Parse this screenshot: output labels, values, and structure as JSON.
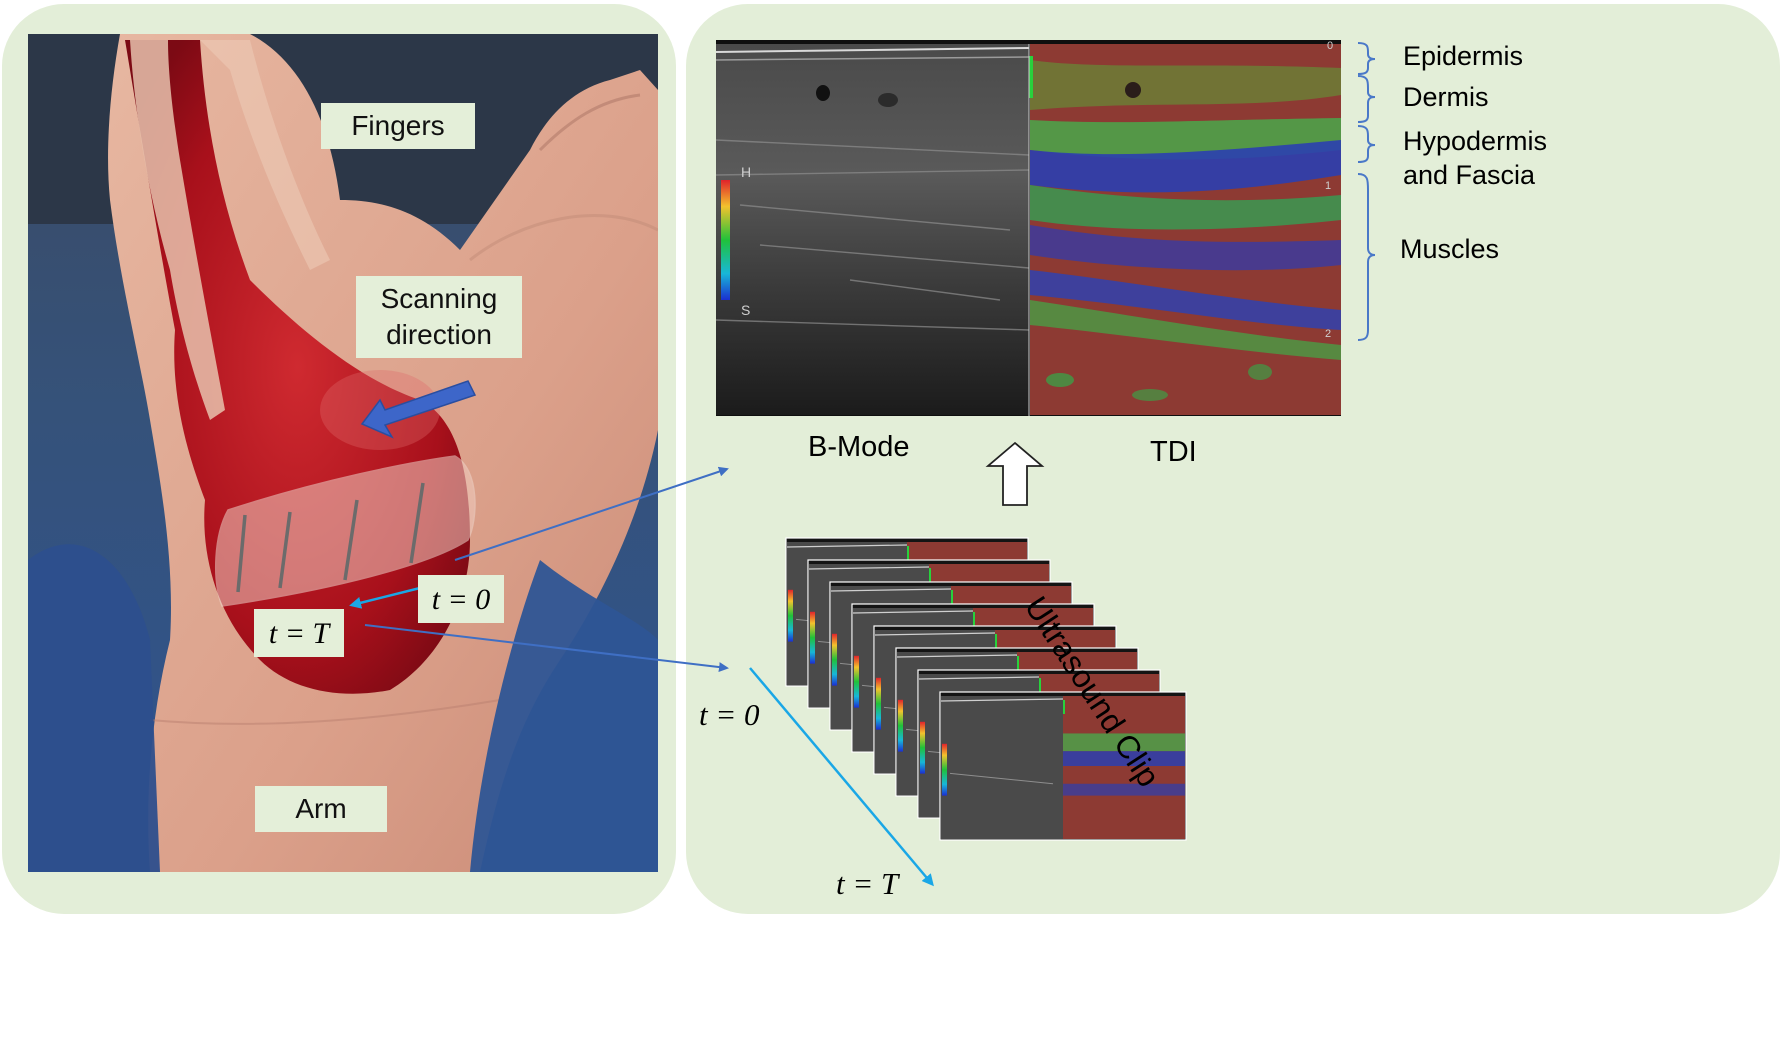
{
  "photo_labels": {
    "fingers": "Fingers",
    "scanning_direction": "Scanning\ndirection",
    "arm": "Arm",
    "t0": "t = 0",
    "tT": "t = T"
  },
  "frame_labels": {
    "bmode": "B-Mode",
    "tdi": "TDI",
    "clip": "Ultrasound Clip",
    "t0": "t = 0",
    "tT": "t = T"
  },
  "colorbar": {
    "top": "H",
    "bottom": "S"
  },
  "depth_ticks": [
    "0",
    "1",
    "2"
  ],
  "layers": [
    "Epidermis",
    "Dermis",
    "Hypodermis\nand Fascia",
    "Muscles"
  ],
  "colors": {
    "panel_bg": "#e3eed8",
    "arrow_blue": "#3f6fc4",
    "arrow_cyan": "#1aa7e6",
    "brace": "#4a78c8",
    "skin": "#d9a08a",
    "wound": "#b0121e"
  },
  "clip_frame_count": 8
}
